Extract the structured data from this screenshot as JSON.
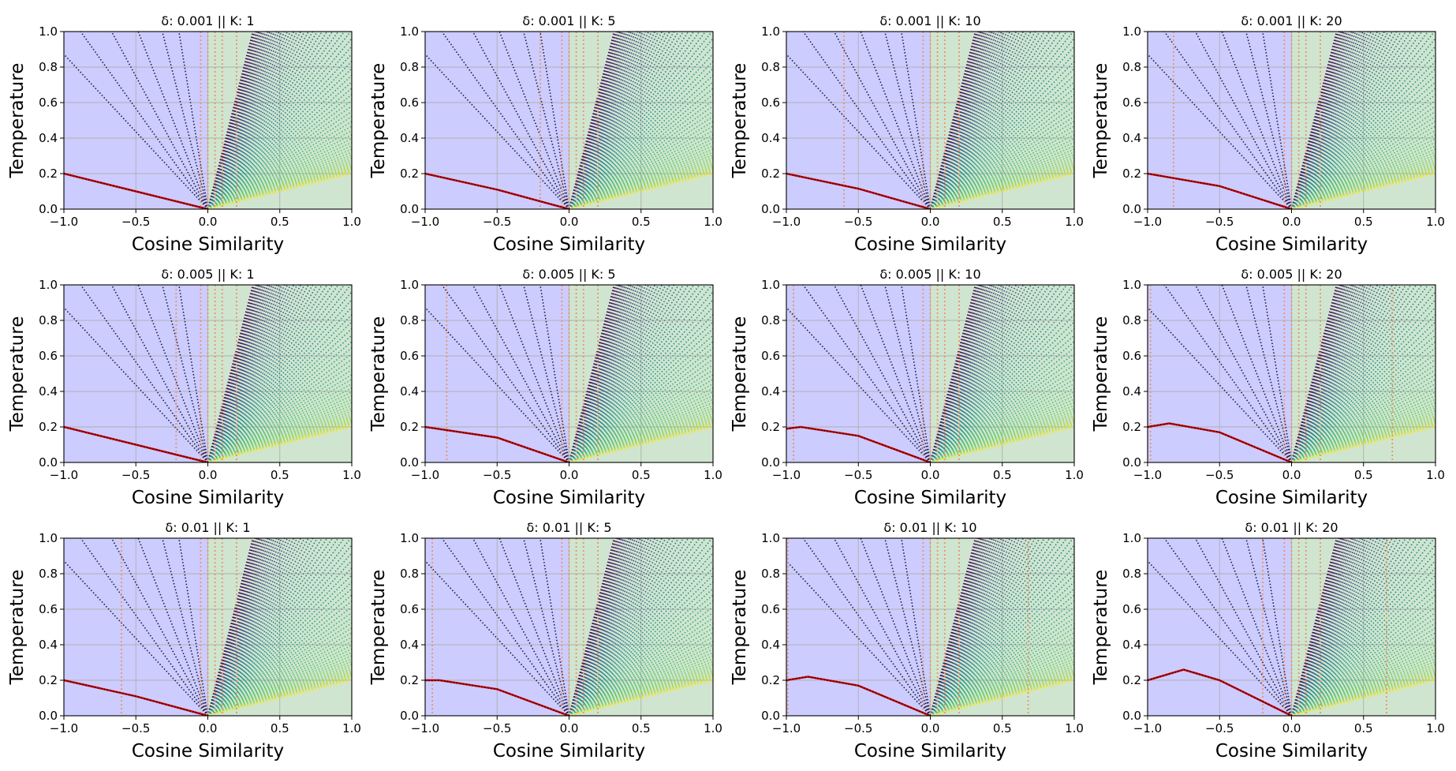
{
  "figure": {
    "colors": {
      "negative_region": "#ccccff",
      "positive_region": "#cfe5cf",
      "grid": "#b0b0b0",
      "boundary_curve": "#cc0000",
      "threshold_lines": "#e8956a",
      "curve_colormap": [
        "#440154",
        "#3b528b",
        "#21918c",
        "#5ec962",
        "#fde725"
      ]
    }
  },
  "chart_data": [
    {
      "type": "line",
      "title": "δ: 0.001 || K: 1",
      "xlabel": "Cosine Similarity",
      "ylabel": "Temperature",
      "xlim": [
        -1.0,
        1.0
      ],
      "ylim": [
        0.0,
        1.0
      ],
      "xticks": [
        "−1.0",
        "−0.5",
        "0.0",
        "0.5",
        "1.0"
      ],
      "yticks": [
        "0.0",
        "0.2",
        "0.4",
        "0.6",
        "0.8",
        "1.0"
      ],
      "grid": true,
      "delta": 0.001,
      "K": 1,
      "boundary_curve": {
        "x": [
          -1.0,
          -0.5,
          0.0
        ],
        "y": [
          0.2,
          0.1,
          0.0
        ]
      },
      "threshold_lines_x": [
        -0.05,
        0.0,
        0.05,
        0.1,
        0.2
      ]
    },
    {
      "type": "line",
      "title": "δ: 0.001 || K: 5",
      "xlabel": "Cosine Similarity",
      "ylabel": "Temperature",
      "xlim": [
        -1.0,
        1.0
      ],
      "ylim": [
        0.0,
        1.0
      ],
      "xticks": [
        "−1.0",
        "−0.5",
        "0.0",
        "0.5",
        "1.0"
      ],
      "yticks": [
        "0.0",
        "0.2",
        "0.4",
        "0.6",
        "0.8",
        "1.0"
      ],
      "grid": true,
      "delta": 0.001,
      "K": 5,
      "boundary_curve": {
        "x": [
          -1.0,
          -0.5,
          0.0
        ],
        "y": [
          0.2,
          0.11,
          0.0
        ]
      },
      "threshold_lines_x": [
        -0.2,
        -0.05,
        0.0,
        0.05,
        0.1,
        0.2
      ]
    },
    {
      "type": "line",
      "title": "δ: 0.001 || K: 10",
      "xlabel": "Cosine Similarity",
      "ylabel": "Temperature",
      "xlim": [
        -1.0,
        1.0
      ],
      "ylim": [
        0.0,
        1.0
      ],
      "xticks": [
        "−1.0",
        "−0.5",
        "0.0",
        "0.5",
        "1.0"
      ],
      "yticks": [
        "0.0",
        "0.2",
        "0.4",
        "0.6",
        "0.8",
        "1.0"
      ],
      "grid": true,
      "delta": 0.001,
      "K": 10,
      "boundary_curve": {
        "x": [
          -1.0,
          -0.5,
          0.0
        ],
        "y": [
          0.2,
          0.115,
          0.0
        ]
      },
      "threshold_lines_x": [
        -0.6,
        -0.05,
        0.0,
        0.05,
        0.1,
        0.2
      ]
    },
    {
      "type": "line",
      "title": "δ: 0.001 || K: 20",
      "xlabel": "Cosine Similarity",
      "ylabel": "Temperature",
      "xlim": [
        -1.0,
        1.0
      ],
      "ylim": [
        0.0,
        1.0
      ],
      "xticks": [
        "−1.0",
        "−0.5",
        "0.0",
        "0.5",
        "1.0"
      ],
      "yticks": [
        "0.0",
        "0.2",
        "0.4",
        "0.6",
        "0.8",
        "1.0"
      ],
      "grid": true,
      "delta": 0.001,
      "K": 20,
      "boundary_curve": {
        "x": [
          -1.0,
          -0.5,
          0.0
        ],
        "y": [
          0.2,
          0.13,
          0.0
        ]
      },
      "threshold_lines_x": [
        -0.82,
        -0.05,
        0.0,
        0.05,
        0.1,
        0.2
      ]
    },
    {
      "type": "line",
      "title": "δ: 0.005 || K: 1",
      "xlabel": "Cosine Similarity",
      "ylabel": "Temperature",
      "xlim": [
        -1.0,
        1.0
      ],
      "ylim": [
        0.0,
        1.0
      ],
      "xticks": [
        "−1.0",
        "−0.5",
        "0.0",
        "0.5",
        "1.0"
      ],
      "yticks": [
        "0.0",
        "0.2",
        "0.4",
        "0.6",
        "0.8",
        "1.0"
      ],
      "grid": true,
      "delta": 0.005,
      "K": 1,
      "boundary_curve": {
        "x": [
          -1.0,
          -0.5,
          0.0
        ],
        "y": [
          0.2,
          0.1,
          0.0
        ]
      },
      "threshold_lines_x": [
        -0.22,
        -0.05,
        0.0,
        0.05,
        0.1,
        0.2
      ]
    },
    {
      "type": "line",
      "title": "δ: 0.005 || K: 5",
      "xlabel": "Cosine Similarity",
      "ylabel": "Temperature",
      "xlim": [
        -1.0,
        1.0
      ],
      "ylim": [
        0.0,
        1.0
      ],
      "xticks": [
        "−1.0",
        "−0.5",
        "0.0",
        "0.5",
        "1.0"
      ],
      "yticks": [
        "0.0",
        "0.2",
        "0.4",
        "0.6",
        "0.8",
        "1.0"
      ],
      "grid": true,
      "delta": 0.005,
      "K": 5,
      "boundary_curve": {
        "x": [
          -1.0,
          -0.5,
          0.0
        ],
        "y": [
          0.2,
          0.14,
          0.0
        ]
      },
      "threshold_lines_x": [
        -0.85,
        -0.05,
        0.0,
        0.05,
        0.1,
        0.2
      ]
    },
    {
      "type": "line",
      "title": "δ: 0.005 || K: 10",
      "xlabel": "Cosine Similarity",
      "ylabel": "Temperature",
      "xlim": [
        -1.0,
        1.0
      ],
      "ylim": [
        0.0,
        1.0
      ],
      "xticks": [
        "−1.0",
        "−0.5",
        "0.0",
        "0.5",
        "1.0"
      ],
      "yticks": [
        "0.0",
        "0.2",
        "0.4",
        "0.6",
        "0.8",
        "1.0"
      ],
      "grid": true,
      "delta": 0.005,
      "K": 10,
      "boundary_curve": {
        "x": [
          -1.0,
          -0.9,
          -0.5,
          0.0
        ],
        "y": [
          0.19,
          0.2,
          0.15,
          0.0
        ]
      },
      "threshold_lines_x": [
        -0.95,
        -0.05,
        0.0,
        0.05,
        0.1,
        0.2
      ]
    },
    {
      "type": "line",
      "title": "δ: 0.005 || K: 20",
      "xlabel": "Cosine Similarity",
      "ylabel": "Temperature",
      "xlim": [
        -1.0,
        1.0
      ],
      "ylim": [
        0.0,
        1.0
      ],
      "xticks": [
        "−1.0",
        "−0.5",
        "0.0",
        "0.5",
        "1.0"
      ],
      "yticks": [
        "0.0",
        "0.2",
        "0.4",
        "0.6",
        "0.8",
        "1.0"
      ],
      "grid": true,
      "delta": 0.005,
      "K": 20,
      "boundary_curve": {
        "x": [
          -1.0,
          -0.85,
          -0.5,
          0.0
        ],
        "y": [
          0.2,
          0.22,
          0.17,
          0.0
        ]
      },
      "threshold_lines_x": [
        -0.98,
        -0.05,
        0.0,
        0.05,
        0.1,
        0.2,
        0.7
      ]
    },
    {
      "type": "line",
      "title": "δ: 0.01 || K: 1",
      "xlabel": "Cosine Similarity",
      "ylabel": "Temperature",
      "xlim": [
        -1.0,
        1.0
      ],
      "ylim": [
        0.0,
        1.0
      ],
      "xticks": [
        "−1.0",
        "−0.5",
        "0.0",
        "0.5",
        "1.0"
      ],
      "yticks": [
        "0.0",
        "0.2",
        "0.4",
        "0.6",
        "0.8",
        "1.0"
      ],
      "grid": true,
      "delta": 0.01,
      "K": 1,
      "boundary_curve": {
        "x": [
          -1.0,
          -0.5,
          0.0
        ],
        "y": [
          0.2,
          0.11,
          0.0
        ]
      },
      "threshold_lines_x": [
        -0.6,
        -0.05,
        0.0,
        0.05,
        0.1,
        0.2
      ]
    },
    {
      "type": "line",
      "title": "δ: 0.01 || K: 5",
      "xlabel": "Cosine Similarity",
      "ylabel": "Temperature",
      "xlim": [
        -1.0,
        1.0
      ],
      "ylim": [
        0.0,
        1.0
      ],
      "xticks": [
        "−1.0",
        "−0.5",
        "0.0",
        "0.5",
        "1.0"
      ],
      "yticks": [
        "0.0",
        "0.2",
        "0.4",
        "0.6",
        "0.8",
        "1.0"
      ],
      "grid": true,
      "delta": 0.01,
      "K": 5,
      "boundary_curve": {
        "x": [
          -1.0,
          -0.9,
          -0.5,
          0.0
        ],
        "y": [
          0.2,
          0.2,
          0.15,
          0.0
        ]
      },
      "threshold_lines_x": [
        -0.95,
        -0.05,
        0.0,
        0.05,
        0.1,
        0.2
      ]
    },
    {
      "type": "line",
      "title": "δ: 0.01 || K: 10",
      "xlabel": "Cosine Similarity",
      "ylabel": "Temperature",
      "xlim": [
        -1.0,
        1.0
      ],
      "ylim": [
        0.0,
        1.0
      ],
      "xticks": [
        "−1.0",
        "−0.5",
        "0.0",
        "0.5",
        "1.0"
      ],
      "yticks": [
        "0.0",
        "0.2",
        "0.4",
        "0.6",
        "0.8",
        "1.0"
      ],
      "grid": true,
      "delta": 0.01,
      "K": 10,
      "boundary_curve": {
        "x": [
          -1.0,
          -0.85,
          -0.5,
          0.0
        ],
        "y": [
          0.2,
          0.22,
          0.17,
          0.0
        ]
      },
      "threshold_lines_x": [
        -0.99,
        -0.05,
        0.0,
        0.05,
        0.1,
        0.2,
        0.68
      ]
    },
    {
      "type": "line",
      "title": "δ: 0.01 || K: 20",
      "xlabel": "Cosine Similarity",
      "ylabel": "Temperature",
      "xlim": [
        -1.0,
        1.0
      ],
      "ylim": [
        0.0,
        1.0
      ],
      "xticks": [
        "−1.0",
        "−0.5",
        "0.0",
        "0.5",
        "1.0"
      ],
      "yticks": [
        "0.0",
        "0.2",
        "0.4",
        "0.6",
        "0.8",
        "1.0"
      ],
      "grid": true,
      "delta": 0.01,
      "K": 20,
      "boundary_curve": {
        "x": [
          -1.0,
          -0.75,
          -0.5,
          0.0
        ],
        "y": [
          0.2,
          0.26,
          0.2,
          0.0
        ]
      },
      "threshold_lines_x": [
        -0.2,
        -0.05,
        0.0,
        0.05,
        0.1,
        0.2,
        0.66
      ]
    }
  ]
}
